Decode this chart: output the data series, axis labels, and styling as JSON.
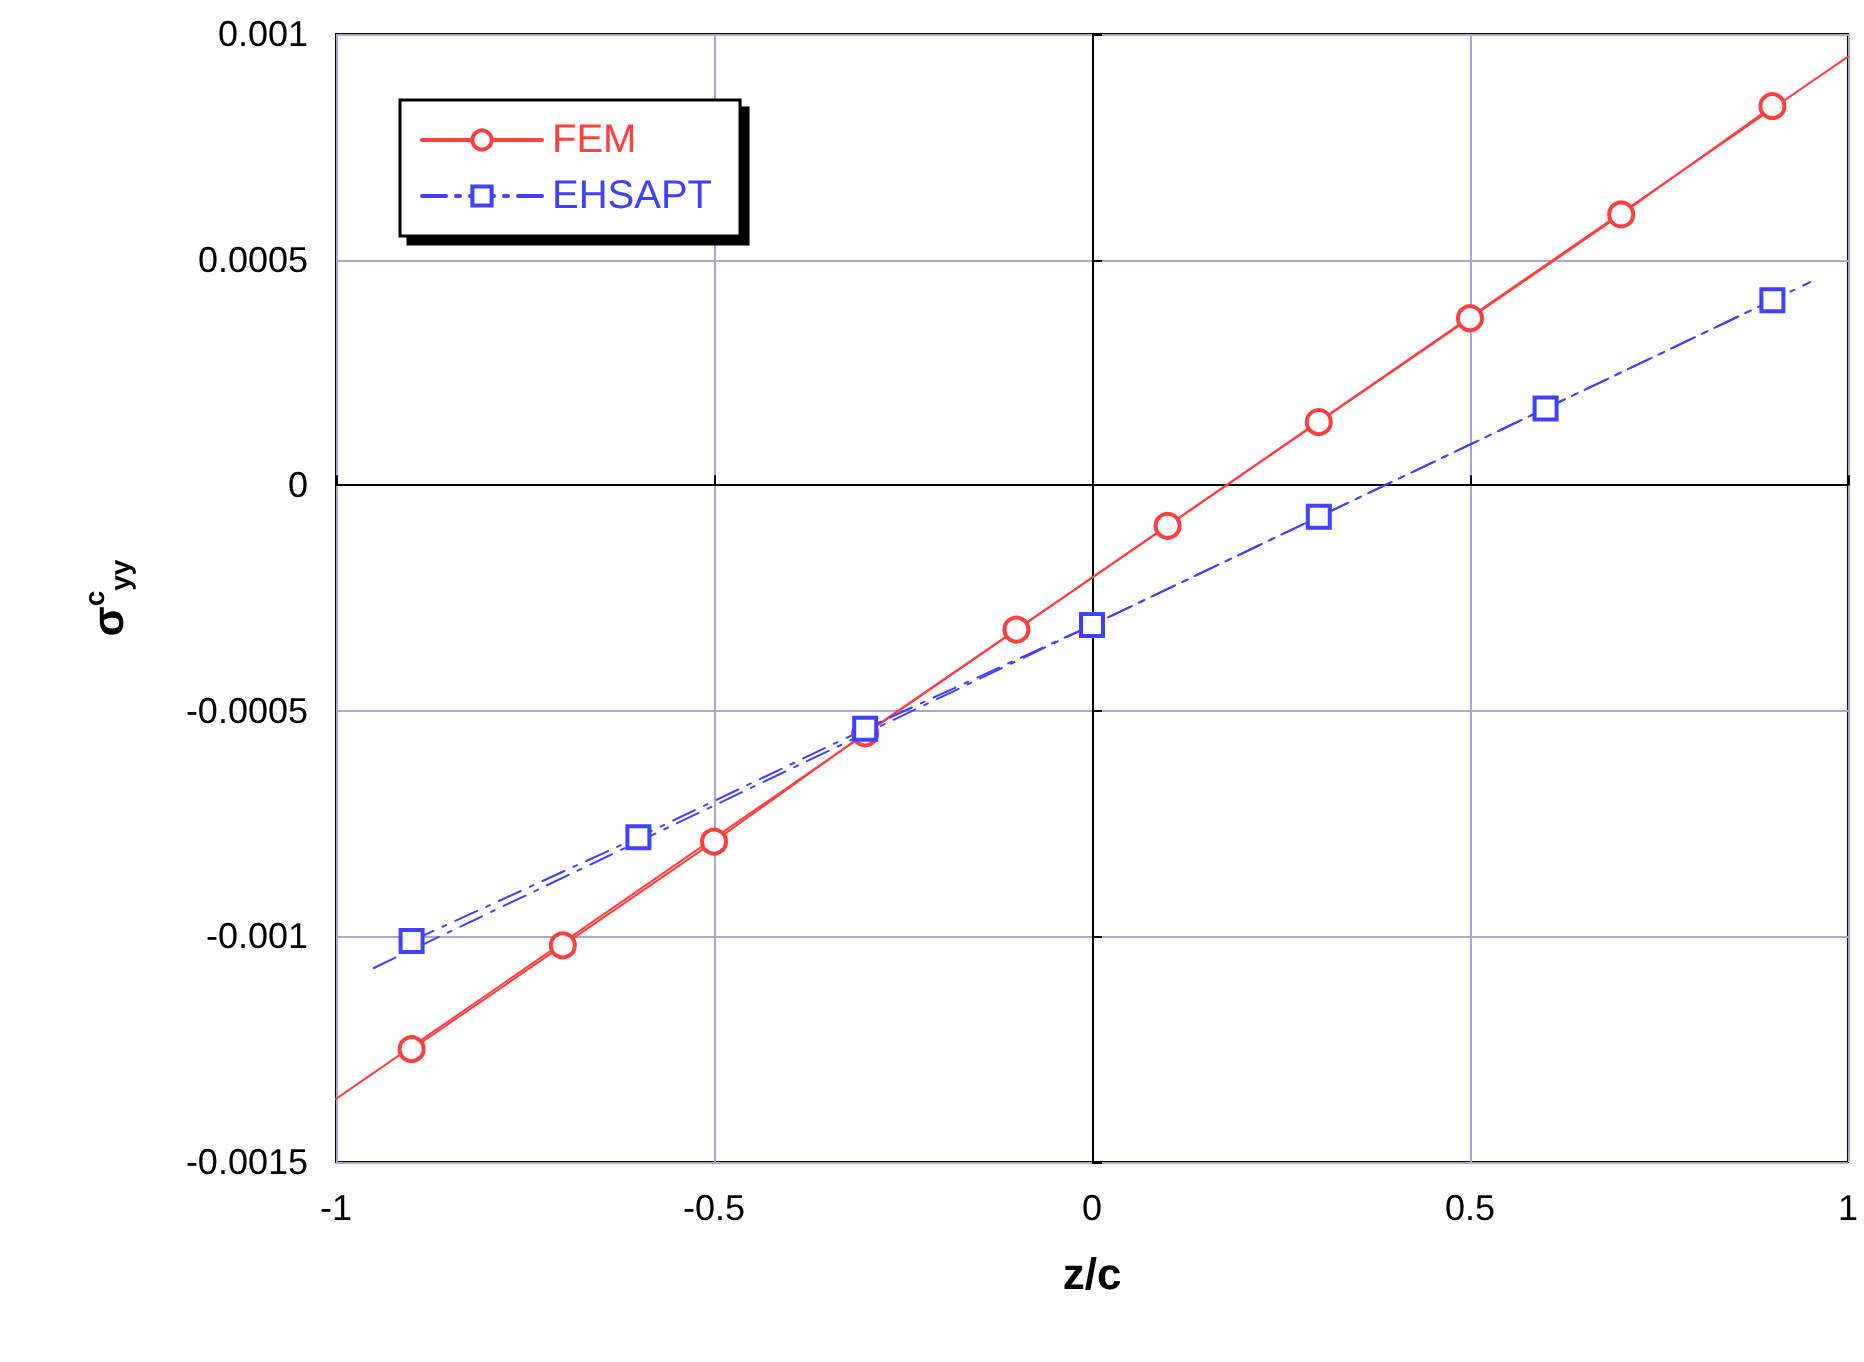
{
  "chart_data": {
    "type": "line",
    "xlabel": "z/c",
    "ylabel": "σ$^{c}$$_{yy}$",
    "xlim": [
      -1,
      1
    ],
    "xticks": [
      -1,
      -0.5,
      0,
      0.5,
      1
    ],
    "ylim": [
      -0.0015,
      0.001
    ],
    "yticks": [
      -0.0015,
      -0.001,
      -0.0005,
      0,
      0.0005,
      0.001
    ],
    "grid": true,
    "legend": "top left",
    "series": [
      {
        "name": "FEM",
        "color": "#ff4040",
        "marker": "circle",
        "line_style": "solid",
        "x": [
          -0.9,
          -0.7,
          -0.5,
          -0.3,
          -0.1,
          0.1,
          0.3,
          0.5,
          0.7,
          0.9
        ],
        "values": [
          -0.00125,
          -0.00102,
          -0.00079,
          -0.00055,
          -0.00032,
          -9e-05,
          0.00014,
          0.00037,
          0.0006,
          0.00084
        ]
      },
      {
        "name": "EHSAPT",
        "color": "#4040ff",
        "marker": "square",
        "line_style": "dashed",
        "x": [
          -0.9,
          -0.6,
          -0.3,
          0,
          0.3,
          0.6,
          0.9
        ],
        "values": [
          -0.00101,
          -0.00078,
          -0.00054,
          -0.00031,
          -7e-05,
          0.00017,
          0.00041
        ]
      },
      {
        "color": "#ff4040",
        "marker": "none",
        "line_style": "solid",
        "x": [
          -1,
          1
        ],
        "values": [
          -0.00136,
          0.00095
        ]
      },
      {
        "color": "#4040ff",
        "marker": "none",
        "line_style": "dashed",
        "x": [
          -0.95,
          0.95
        ],
        "values": [
          -0.00107,
          0.00045
        ]
      }
    ]
  }
}
